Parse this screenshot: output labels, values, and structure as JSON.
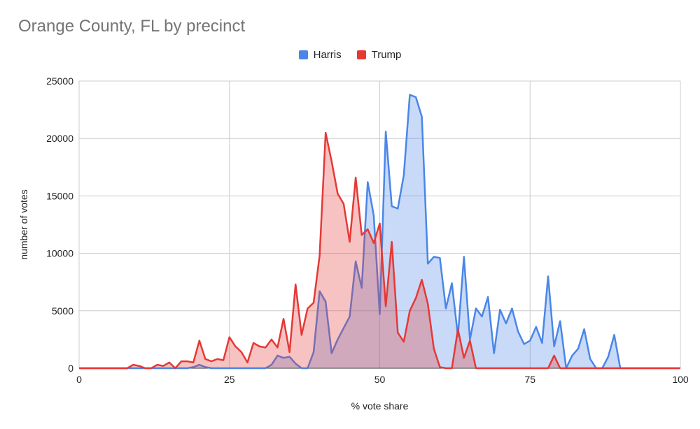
{
  "chart_data": {
    "type": "area",
    "title": "Orange County, FL by precinct",
    "xlabel": "% vote share",
    "ylabel": "number of votes",
    "xlim": [
      0,
      100
    ],
    "ylim": [
      0,
      25000
    ],
    "x_ticks": [
      0,
      25,
      50,
      75,
      100
    ],
    "y_ticks": [
      0,
      5000,
      10000,
      15000,
      20000,
      25000
    ],
    "grid": true,
    "legend_position": "top-center",
    "series": [
      {
        "name": "Harris",
        "color": "#4a86e8",
        "fill": "#c9daf8",
        "points": [
          [
            0,
            0
          ],
          [
            18,
            0
          ],
          [
            19,
            100
          ],
          [
            20,
            300
          ],
          [
            21,
            100
          ],
          [
            22,
            0
          ],
          [
            30,
            0
          ],
          [
            31,
            0
          ],
          [
            32,
            300
          ],
          [
            33,
            1100
          ],
          [
            34,
            900
          ],
          [
            35,
            1000
          ],
          [
            36,
            400
          ],
          [
            37,
            0
          ],
          [
            38,
            0
          ],
          [
            39,
            1400
          ],
          [
            40,
            6700
          ],
          [
            41,
            5800
          ],
          [
            42,
            1300
          ],
          [
            43,
            2500
          ],
          [
            44,
            3500
          ],
          [
            45,
            4500
          ],
          [
            46,
            9300
          ],
          [
            47,
            7000
          ],
          [
            48,
            16200
          ],
          [
            49,
            13300
          ],
          [
            50,
            4700
          ],
          [
            51,
            20600
          ],
          [
            52,
            14100
          ],
          [
            53,
            13900
          ],
          [
            54,
            16800
          ],
          [
            55,
            23800
          ],
          [
            56,
            23600
          ],
          [
            57,
            21900
          ],
          [
            58,
            9100
          ],
          [
            59,
            9700
          ],
          [
            60,
            9600
          ],
          [
            61,
            5200
          ],
          [
            62,
            7400
          ],
          [
            63,
            2800
          ],
          [
            64,
            9700
          ],
          [
            65,
            2500
          ],
          [
            66,
            5200
          ],
          [
            67,
            4500
          ],
          [
            68,
            6200
          ],
          [
            69,
            1300
          ],
          [
            70,
            5100
          ],
          [
            71,
            3900
          ],
          [
            72,
            5200
          ],
          [
            73,
            3200
          ],
          [
            74,
            2100
          ],
          [
            75,
            2400
          ],
          [
            76,
            3600
          ],
          [
            77,
            2200
          ],
          [
            78,
            8000
          ],
          [
            79,
            1900
          ],
          [
            80,
            4100
          ],
          [
            81,
            0
          ],
          [
            82,
            1100
          ],
          [
            83,
            1700
          ],
          [
            84,
            3400
          ],
          [
            85,
            800
          ],
          [
            86,
            0
          ],
          [
            87,
            0
          ],
          [
            88,
            1000
          ],
          [
            89,
            2900
          ],
          [
            90,
            0
          ],
          [
            100,
            0
          ]
        ]
      },
      {
        "name": "Trump",
        "color": "#e53935",
        "fill": "#f4c7c3",
        "points": [
          [
            0,
            0
          ],
          [
            8,
            0
          ],
          [
            9,
            300
          ],
          [
            10,
            200
          ],
          [
            11,
            0
          ],
          [
            12,
            0
          ],
          [
            13,
            300
          ],
          [
            14,
            200
          ],
          [
            15,
            500
          ],
          [
            16,
            0
          ],
          [
            17,
            600
          ],
          [
            18,
            600
          ],
          [
            19,
            500
          ],
          [
            20,
            2400
          ],
          [
            21,
            800
          ],
          [
            22,
            600
          ],
          [
            23,
            800
          ],
          [
            24,
            700
          ],
          [
            25,
            2700
          ],
          [
            26,
            1900
          ],
          [
            27,
            1400
          ],
          [
            28,
            500
          ],
          [
            29,
            2200
          ],
          [
            30,
            1900
          ],
          [
            31,
            1800
          ],
          [
            32,
            2500
          ],
          [
            33,
            1800
          ],
          [
            34,
            4300
          ],
          [
            35,
            1400
          ],
          [
            36,
            7300
          ],
          [
            37,
            2900
          ],
          [
            38,
            5200
          ],
          [
            39,
            5700
          ],
          [
            40,
            9800
          ],
          [
            41,
            20500
          ],
          [
            42,
            18000
          ],
          [
            43,
            15200
          ],
          [
            44,
            14300
          ],
          [
            45,
            11000
          ],
          [
            46,
            16600
          ],
          [
            47,
            11600
          ],
          [
            48,
            12100
          ],
          [
            49,
            10900
          ],
          [
            50,
            12600
          ],
          [
            51,
            5400
          ],
          [
            52,
            11000
          ],
          [
            53,
            3100
          ],
          [
            54,
            2300
          ],
          [
            55,
            5000
          ],
          [
            56,
            6100
          ],
          [
            57,
            7700
          ],
          [
            58,
            5600
          ],
          [
            59,
            1700
          ],
          [
            60,
            100
          ],
          [
            61,
            0
          ],
          [
            62,
            0
          ],
          [
            63,
            3400
          ],
          [
            64,
            900
          ],
          [
            65,
            2400
          ],
          [
            66,
            0
          ],
          [
            67,
            0
          ],
          [
            78,
            0
          ],
          [
            79,
            1100
          ],
          [
            80,
            0
          ],
          [
            100,
            0
          ]
        ]
      }
    ]
  }
}
